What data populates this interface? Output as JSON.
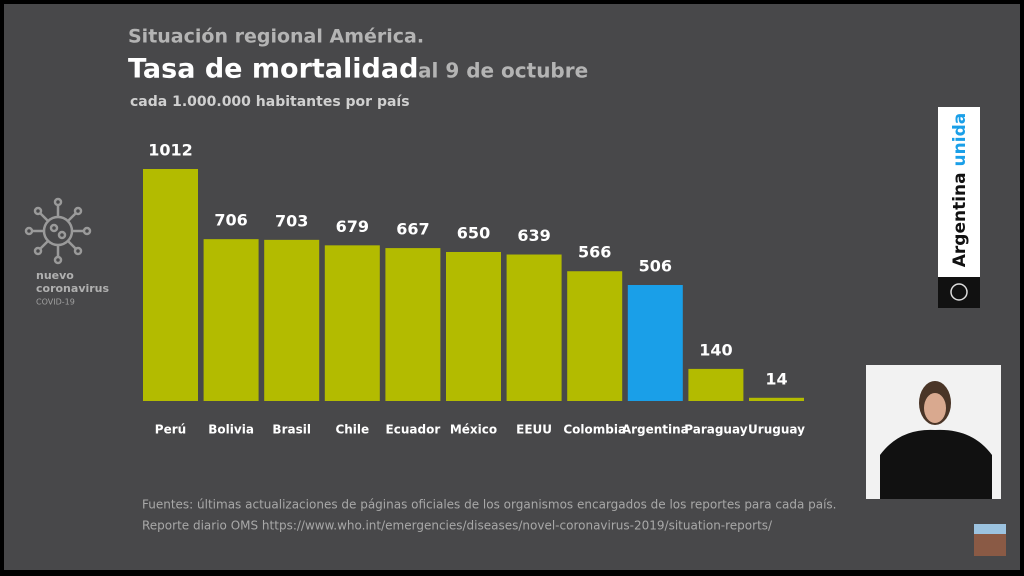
{
  "chart_data": {
    "type": "bar",
    "supertitle": "Situación regional América.",
    "title": "Tasa de mortalidad",
    "date": "al 9 de octubre",
    "subtitle": "cada 1.000.000 habitantes por país",
    "categories": [
      "Perú",
      "Bolivia",
      "Brasil",
      "Chile",
      "Ecuador",
      "México",
      "EEUU",
      "Colombia",
      "Argentina",
      "Paraguay",
      "Uruguay"
    ],
    "values": [
      1012,
      706,
      703,
      679,
      667,
      650,
      639,
      566,
      506,
      140,
      14
    ],
    "colors": [
      "#b3bb00",
      "#b3bb00",
      "#b3bb00",
      "#b3bb00",
      "#b3bb00",
      "#b3bb00",
      "#b3bb00",
      "#b3bb00",
      "#1a9fe8",
      "#b3bb00",
      "#b3bb00"
    ],
    "sources": [
      "Fuentes: últimas actualizaciones de páginas oficiales de los organismos encargados de los reportes para cada país.",
      "Reporte diario OMS https://www.who.int/emergencies/diseases/novel-coronavirus-2019/situation-reports/"
    ]
  },
  "branding": {
    "logo": [
      "nuevo",
      "coronavirus",
      "COVID-19"
    ],
    "banner": [
      "Argentina",
      "unida"
    ]
  }
}
